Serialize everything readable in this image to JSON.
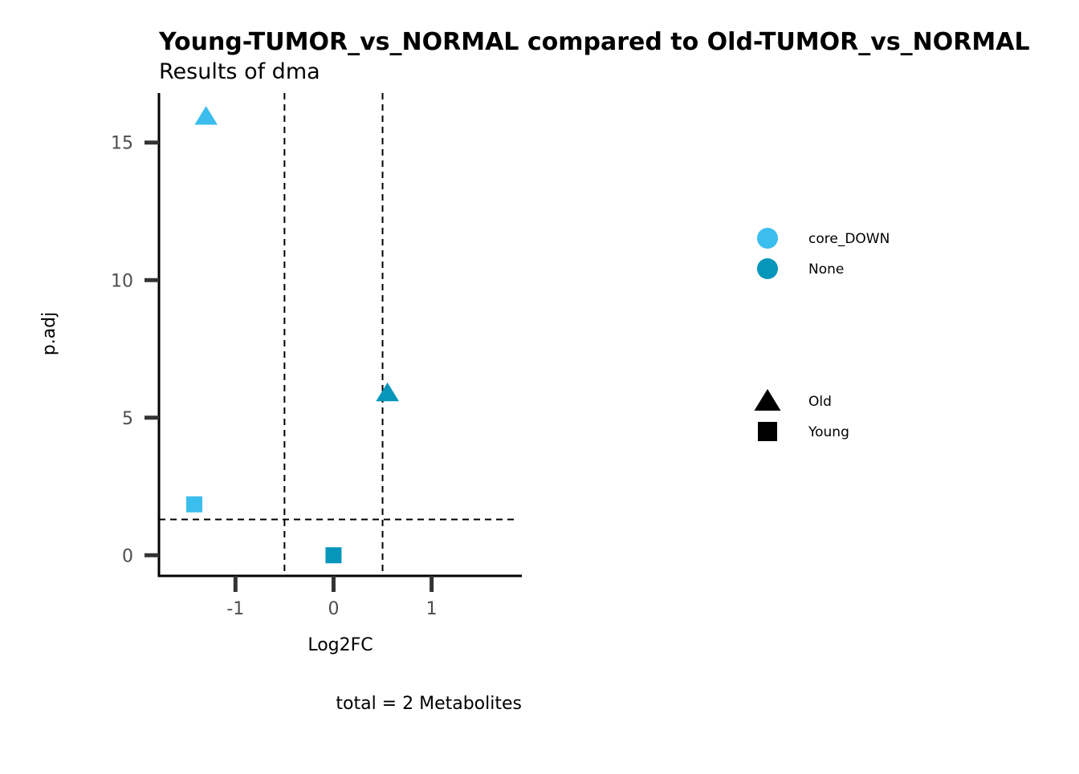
{
  "chart_data": {
    "type": "scatter",
    "title": "Young-TUMOR_vs_NORMAL compared to Old-TUMOR_vs_NORMAL",
    "subtitle": "Results of dma",
    "xlabel": "Log2FC",
    "ylabel": "p.adj",
    "caption": "total = 2 Metabolites",
    "xlim": [
      -1.78,
      1.92
    ],
    "ylim": [
      -0.75,
      16.8
    ],
    "xticks": [
      -1,
      0,
      1
    ],
    "xtick_labels": [
      "-1",
      "0",
      "1"
    ],
    "yticks": [
      0,
      5,
      10,
      15
    ],
    "ytick_labels": [
      "0",
      "5",
      "10",
      "15"
    ],
    "grid": false,
    "reference_lines": {
      "vertical": [
        -0.5,
        0.5
      ],
      "horizontal": [
        1.3
      ]
    },
    "color_legend": [
      {
        "label": "core_DOWN",
        "color": "#3BBDED"
      },
      {
        "label": "None",
        "color": "#0696BB"
      }
    ],
    "shape_legend": [
      {
        "label": "Old",
        "shape": "triangle"
      },
      {
        "label": "Young",
        "shape": "square"
      }
    ],
    "points": [
      {
        "x": -1.3,
        "y": 15.95,
        "color_group": "core_DOWN",
        "shape_group": "Old"
      },
      {
        "x": 0.55,
        "y": 5.9,
        "color_group": "None",
        "shape_group": "Old"
      },
      {
        "x": -1.42,
        "y": 1.85,
        "color_group": "core_DOWN",
        "shape_group": "Young"
      },
      {
        "x": 0.0,
        "y": 0.0,
        "color_group": "None",
        "shape_group": "Young"
      }
    ]
  }
}
